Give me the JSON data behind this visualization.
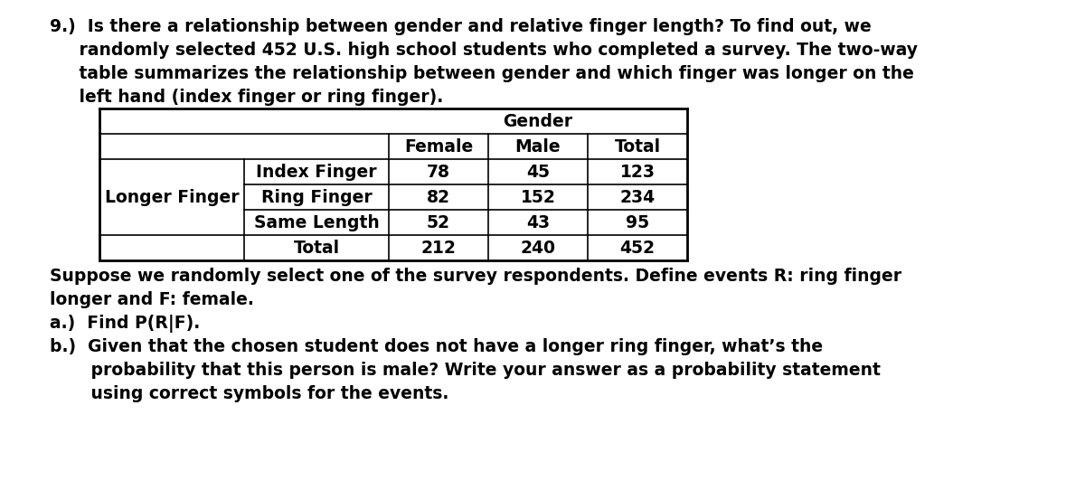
{
  "bg_color": "#ffffff",
  "intro_line1": "9.)  Is there a relationship between gender and relative finger length? To find out, we",
  "intro_line2": "     randomly selected 452 U.S. high school students who completed a survey. The two-way",
  "intro_line3": "     table summarizes the relationship between gender and which finger was longer on the",
  "intro_line4": "     left hand (index finger or ring finger).",
  "gender_header": "Gender",
  "col_headers": [
    "Female",
    "Male",
    "Total"
  ],
  "row_label_top": "Longer Finger",
  "row_labels": [
    "Index Finger",
    "Ring Finger",
    "Same Length",
    "Total"
  ],
  "table_data": [
    [
      "78",
      "45",
      "123"
    ],
    [
      "82",
      "152",
      "234"
    ],
    [
      "52",
      "43",
      "95"
    ],
    [
      "212",
      "240",
      "452"
    ]
  ],
  "footer_line1": "Suppose we randomly select one of the survey respondents. Define events R: ring finger",
  "footer_line2": "longer and F: female.",
  "footer_line3": "a.)  Find P(R|F).",
  "footer_line4": "b.)  Given that the chosen student does not have a longer ring finger, what’s the",
  "footer_line5": "       probability that this person is male? Write your answer as a probability statement",
  "footer_line6": "       using correct symbols for the events.",
  "font_size": 13.5
}
